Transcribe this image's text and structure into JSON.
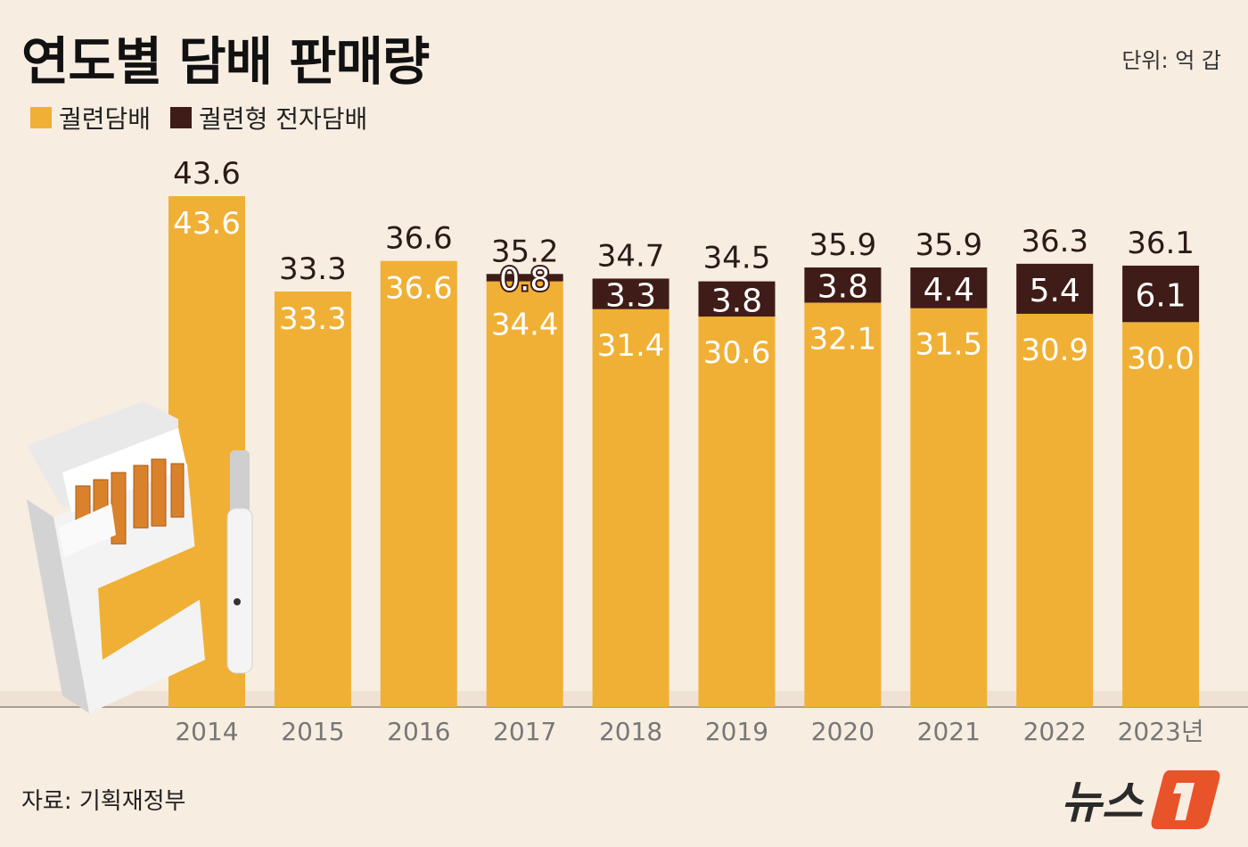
{
  "title": "연도별 담배 판매량",
  "unit_label": "단위: 억 갑",
  "source": "자료: 기획재정부",
  "logo": {
    "text": "뉴스",
    "mark": "1"
  },
  "colors": {
    "cigarette": "#f0b035",
    "e_cigarette": "#3f1c17",
    "background": "#f8ede1",
    "logo_accent": "#e8532a"
  },
  "chart_data": {
    "type": "bar",
    "stacked": true,
    "title": "연도별 담배 판매량",
    "unit": "억 갑",
    "categories": [
      "2014",
      "2015",
      "2016",
      "2017",
      "2018",
      "2019",
      "2020",
      "2021",
      "2022",
      "2023년"
    ],
    "series": [
      {
        "name": "궐련담배",
        "values": [
          43.6,
          33.3,
          36.6,
          34.4,
          31.4,
          30.6,
          32.1,
          31.5,
          30.9,
          30.0
        ]
      },
      {
        "name": "궐련형 전자담배",
        "values": [
          null,
          null,
          null,
          0.8,
          3.3,
          3.8,
          3.8,
          4.4,
          5.4,
          6.1
        ]
      }
    ],
    "totals": [
      43.6,
      33.3,
      36.6,
      35.2,
      34.7,
      34.5,
      35.9,
      35.9,
      36.3,
      36.1
    ],
    "legend_position": "top-left",
    "grid": false
  }
}
